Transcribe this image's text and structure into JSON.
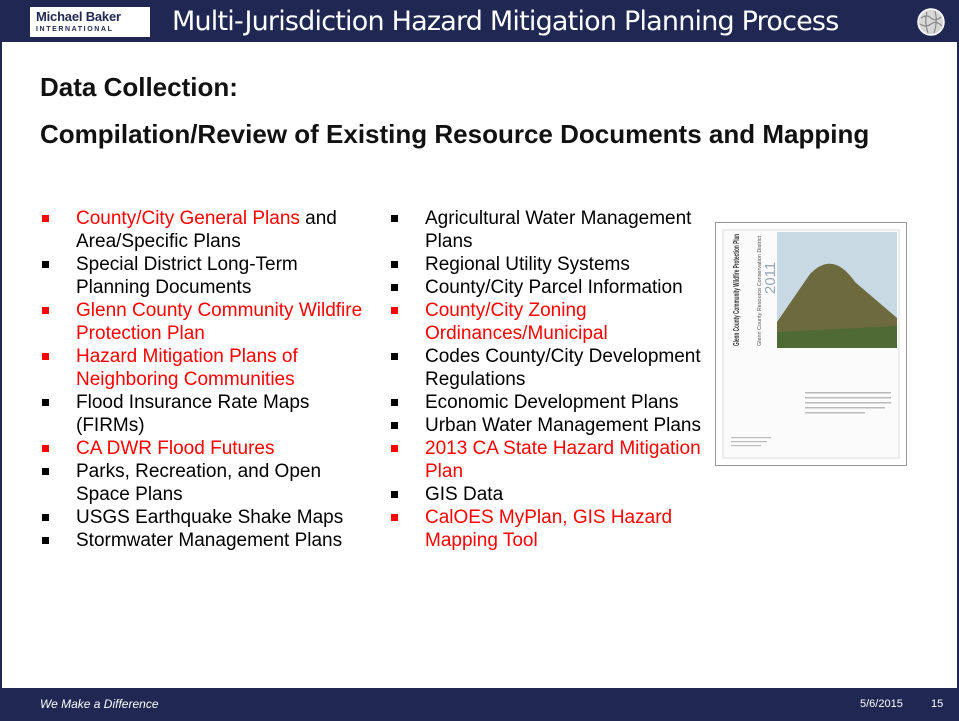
{
  "header": {
    "logo": {
      "name": "Michael Baker",
      "sub": "INTERNATIONAL"
    },
    "title": "Multi-Jurisdiction Hazard Mitigation Planning Process"
  },
  "heading": {
    "line1": "Data Collection:",
    "line2": "Compilation/Review of Existing Resource Documents and Mapping"
  },
  "columns": [
    {
      "items": [
        {
          "segments": [
            {
              "text": "County/City General Plans",
              "color": "#ff0000"
            },
            {
              "text": " and Area/Specific Plans",
              "color": "#000000"
            }
          ]
        },
        {
          "segments": [
            {
              "text": "Special District Long-Term Planning Documents",
              "color": "#000000"
            }
          ]
        },
        {
          "segments": [
            {
              "text": "Glenn County Community Wildfire Protection Plan",
              "color": "#ff0000"
            }
          ]
        },
        {
          "segments": [
            {
              "text": "Hazard Mitigation Plans of Neighboring Communities",
              "color": "#ff0000"
            }
          ]
        },
        {
          "segments": [
            {
              "text": "Flood Insurance Rate Maps (FIRMs)",
              "color": "#000000"
            }
          ]
        },
        {
          "segments": [
            {
              "text": "CA DWR Flood Futures",
              "color": "#ff0000"
            }
          ]
        },
        {
          "segments": [
            {
              "text": "Parks, Recreation, and Open Space Plans",
              "color": "#000000"
            }
          ]
        },
        {
          "segments": [
            {
              "text": "USGS Earthquake Shake Maps",
              "color": "#000000"
            }
          ]
        },
        {
          "segments": [
            {
              "text": "Stormwater Management Plans",
              "color": "#000000"
            }
          ]
        }
      ]
    },
    {
      "items": [
        {
          "segments": [
            {
              "text": "Agricultural Water Management Plans",
              "color": "#000000"
            }
          ]
        },
        {
          "segments": [
            {
              "text": "Regional Utility Systems",
              "color": "#000000"
            }
          ]
        },
        {
          "segments": [
            {
              "text": "County/City Parcel Information",
              "color": "#000000"
            }
          ]
        },
        {
          "segments": [
            {
              "text": "County/City Zoning Ordinances/Municipal",
              "color": "#ff0000"
            }
          ]
        },
        {
          "segments": [
            {
              "text": "Codes County/City Development Regulations",
              "color": "#000000"
            }
          ]
        },
        {
          "segments": [
            {
              "text": "Economic Development Plans",
              "color": "#000000"
            }
          ]
        },
        {
          "segments": [
            {
              "text": "Urban Water Management Plans",
              "color": "#000000"
            }
          ]
        },
        {
          "segments": [
            {
              "text": "2013 CA State Hazard Mitigation Plan",
              "color": "#ff0000"
            }
          ]
        },
        {
          "segments": [
            {
              "text": "GIS Data",
              "color": "#000000"
            }
          ]
        },
        {
          "segments": [
            {
              "text": "CalOES MyPlan, GIS Hazard Mapping Tool",
              "color": "#ff0000"
            }
          ]
        }
      ]
    }
  ],
  "cover": {
    "title": "Glenn County Community Wildfire Protection Plan",
    "org": "Glenn County Resource Conservation District",
    "year": "2011"
  },
  "footer": {
    "tagline": "We Make a Difference",
    "date": "5/6/2015",
    "page": "15"
  }
}
